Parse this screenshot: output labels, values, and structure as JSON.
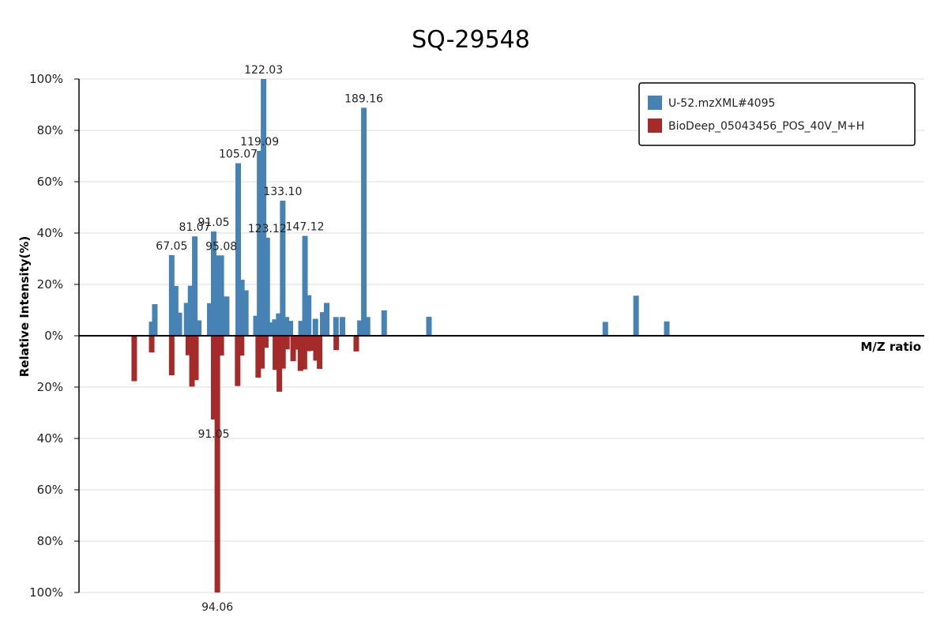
{
  "chart_data": {
    "type": "bar",
    "title": "SQ-29548",
    "xlabel": "M/Z ratio",
    "ylabel": "Relative Intensity(%)",
    "y_ticks": [
      "100%",
      "80%",
      "60%",
      "40%",
      "20%",
      "0%",
      "20%",
      "40%",
      "60%",
      "80%",
      "100%"
    ],
    "ylim": [
      -100,
      100
    ],
    "xlim": [
      40,
      340
    ],
    "grid": true,
    "legend_position": "top-right",
    "colors": {
      "sample": "#4682b4",
      "reference": "#a52a2a"
    },
    "series": [
      {
        "name": "U-52.mzXML#4095",
        "direction": "up",
        "points": [
          {
            "mz": 65.8,
            "v": 5.5
          },
          {
            "mz": 66.9,
            "v": 12.3
          },
          {
            "mz": 72.9,
            "v": 31.4
          },
          {
            "mz": 74.3,
            "v": 19.4
          },
          {
            "mz": 75.6,
            "v": 9
          },
          {
            "mz": 78.2,
            "v": 12.8
          },
          {
            "mz": 79.6,
            "v": 19.5
          },
          {
            "mz": 81.1,
            "v": 38.7
          },
          {
            "mz": 82.5,
            "v": 6
          },
          {
            "mz": 86.4,
            "v": 12.7
          },
          {
            "mz": 87.8,
            "v": 40.6
          },
          {
            "mz": 89.1,
            "v": 31.3
          },
          {
            "mz": 90.5,
            "v": 31.3
          },
          {
            "mz": 92.4,
            "v": 15.3
          },
          {
            "mz": 96.5,
            "v": 67.2
          },
          {
            "mz": 97.8,
            "v": 21.8
          },
          {
            "mz": 99.2,
            "v": 17.7
          },
          {
            "mz": 102.8,
            "v": 7.8
          },
          {
            "mz": 104.1,
            "v": 72
          },
          {
            "mz": 105.5,
            "v": 100
          },
          {
            "mz": 106.8,
            "v": 38.2
          },
          {
            "mz": 108.2,
            "v": 5.2
          },
          {
            "mz": 109.5,
            "v": 6.4
          },
          {
            "mz": 110.9,
            "v": 8.7
          },
          {
            "mz": 112.3,
            "v": 52.6
          },
          {
            "mz": 113.6,
            "v": 7.3
          },
          {
            "mz": 115,
            "v": 5.8
          },
          {
            "mz": 118.8,
            "v": 5.8
          },
          {
            "mz": 120.2,
            "v": 38.9
          },
          {
            "mz": 121.5,
            "v": 15.8
          },
          {
            "mz": 123.9,
            "v": 6.6
          },
          {
            "mz": 126.5,
            "v": 9.2
          },
          {
            "mz": 127.9,
            "v": 12.8
          },
          {
            "mz": 131.2,
            "v": 7.3
          },
          {
            "mz": 133.5,
            "v": 7.3
          },
          {
            "mz": 139.7,
            "v": 6
          },
          {
            "mz": 141.1,
            "v": 88.8
          },
          {
            "mz": 142.4,
            "v": 7.3
          },
          {
            "mz": 148.3,
            "v": 9.9
          },
          {
            "mz": 164.2,
            "v": 7.4
          },
          {
            "mz": 226.8,
            "v": 5.4
          },
          {
            "mz": 237.7,
            "v": 15.6
          },
          {
            "mz": 248.6,
            "v": 5.6
          }
        ]
      },
      {
        "name": "BioDeep_05043456_POS_40V_M+H",
        "direction": "down",
        "points": [
          {
            "mz": 59.6,
            "v": 17.7
          },
          {
            "mz": 65.8,
            "v": 6.5
          },
          {
            "mz": 72.9,
            "v": 15.4
          },
          {
            "mz": 78.8,
            "v": 7.6
          },
          {
            "mz": 80.1,
            "v": 19.8
          },
          {
            "mz": 81.5,
            "v": 17.3
          },
          {
            "mz": 87.8,
            "v": 32.6
          },
          {
            "mz": 89.1,
            "v": 100
          },
          {
            "mz": 90.5,
            "v": 7.7
          },
          {
            "mz": 96.3,
            "v": 19.6
          },
          {
            "mz": 97.7,
            "v": 7.7
          },
          {
            "mz": 103.6,
            "v": 16.3
          },
          {
            "mz": 104.9,
            "v": 12.8
          },
          {
            "mz": 106.3,
            "v": 4.7
          },
          {
            "mz": 109.7,
            "v": 13.3
          },
          {
            "mz": 111.1,
            "v": 21.8
          },
          {
            "mz": 112.4,
            "v": 12.8
          },
          {
            "mz": 113.8,
            "v": 5.3
          },
          {
            "mz": 116,
            "v": 9.9
          },
          {
            "mz": 117.3,
            "v": 5.4
          },
          {
            "mz": 118.6,
            "v": 13.7
          },
          {
            "mz": 120,
            "v": 13.1
          },
          {
            "mz": 121.4,
            "v": 6
          },
          {
            "mz": 122.7,
            "v": 5.8
          },
          {
            "mz": 124.1,
            "v": 9.7
          },
          {
            "mz": 125.4,
            "v": 12.9
          },
          {
            "mz": 131.3,
            "v": 5.6
          },
          {
            "mz": 138.4,
            "v": 6.1
          }
        ]
      }
    ],
    "peak_labels": [
      {
        "text": "67.05",
        "mz": 72.9,
        "v": 31.4
      },
      {
        "text": "81.07",
        "mz": 81.1,
        "v": 38.7
      },
      {
        "text": "91.05",
        "mz": 87.8,
        "v": 40.6
      },
      {
        "text": "95.08",
        "mz": 90.5,
        "v": 31.3
      },
      {
        "text": "105.07",
        "mz": 96.5,
        "v": 67.2
      },
      {
        "text": "119.09",
        "mz": 104.1,
        "v": 72
      },
      {
        "text": "122.03",
        "mz": 105.5,
        "v": 100
      },
      {
        "text": "123.12",
        "mz": 106.8,
        "v": 38.2
      },
      {
        "text": "133.10",
        "mz": 112.3,
        "v": 52.6
      },
      {
        "text": "147.12",
        "mz": 120.2,
        "v": 38.9
      },
      {
        "text": "189.16",
        "mz": 141.1,
        "v": 88.8
      },
      {
        "text": "91.05",
        "mz": 87.8,
        "v": -32.6
      },
      {
        "text": "94.06",
        "mz": 89.1,
        "v": -100
      }
    ]
  }
}
